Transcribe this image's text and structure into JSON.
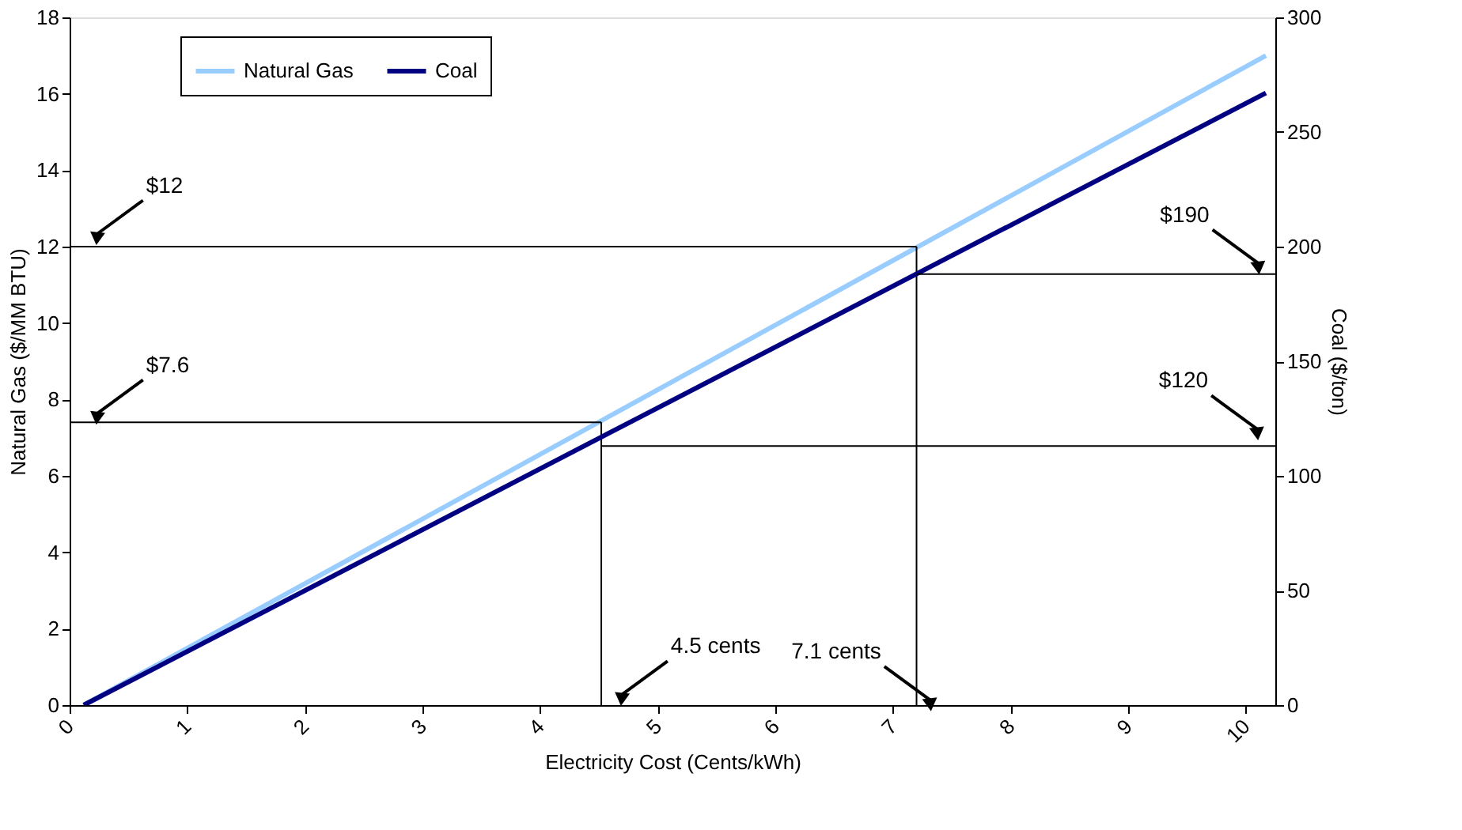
{
  "chart_data": {
    "type": "line",
    "xlabel": "Electricity Cost (Cents/kWh)",
    "ylabel": "Natural Gas ($/MM BTU)",
    "y2label": "Coal ($/ton)",
    "xlim": [
      0,
      10.25
    ],
    "xticks": [
      0,
      1,
      2,
      3,
      4,
      5,
      6,
      7,
      8,
      9,
      10
    ],
    "ylim": [
      0,
      18
    ],
    "yticks": [
      0,
      2,
      4,
      6,
      8,
      10,
      12,
      14,
      16,
      18
    ],
    "y2lim": [
      0,
      300
    ],
    "y2ticks": [
      0,
      50,
      100,
      150,
      200,
      250,
      300
    ],
    "grid": false,
    "legend": "top left",
    "marker": "none",
    "line_style": "solid",
    "series": [
      {
        "name": "Natural Gas",
        "color": "#99ccff",
        "x": [
          0.12,
          10.17
        ],
        "values": [
          0,
          17
        ]
      },
      {
        "name": "Coal",
        "color": "#000080",
        "x": [
          0.12,
          10.17
        ],
        "values": [
          0,
          267
        ],
        "axis": "y2"
      },
      {
        "type": "line",
        "color": "#000000",
        "x": [
          0,
          7.2
        ],
        "values": [
          12,
          12
        ]
      },
      {
        "type": "line",
        "color": "#000000",
        "x": [
          7.2,
          7.2
        ],
        "values": [
          0,
          12
        ]
      },
      {
        "type": "line",
        "color": "#000000",
        "x": [
          7.2,
          10.25
        ],
        "values": [
          188,
          188
        ],
        "axis": "y2"
      },
      {
        "type": "line",
        "color": "#000000",
        "x": [
          0,
          4.52
        ],
        "values": [
          7.4,
          7.4
        ]
      },
      {
        "type": "line",
        "color": "#000000",
        "x": [
          4.52,
          4.52
        ],
        "values": [
          0,
          7.4
        ]
      },
      {
        "type": "line",
        "color": "#000000",
        "x": [
          4.52,
          10.25
        ],
        "values": [
          113,
          113
        ],
        "axis": "y2"
      }
    ],
    "annotations": [
      {
        "text": "$12",
        "x": 0.22,
        "y": 12.3
      },
      {
        "text": "$7.6",
        "x": 0.22,
        "y": 7.6
      },
      {
        "text": "4.5 cents",
        "x": 4.68,
        "y": 0.24
      },
      {
        "text": "7.1 cents",
        "x": 7.33,
        "y": 0.1
      },
      {
        "text": "$190",
        "x": 10.12,
        "y": 11.53
      },
      {
        "text": "$120",
        "x": 10.11,
        "y": 7.19
      }
    ]
  }
}
